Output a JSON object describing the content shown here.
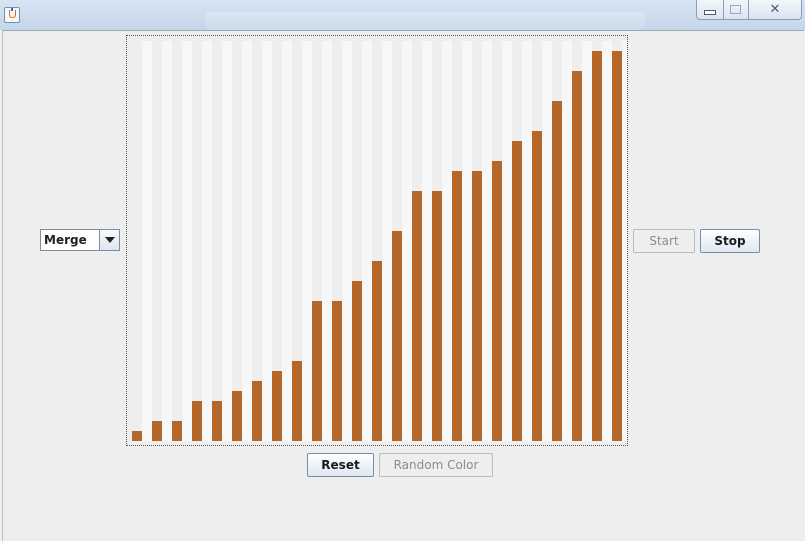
{
  "window": {
    "app_icon": "java-cup-icon",
    "controls": {
      "minimize": "minimize-icon",
      "maximize": "maximize-icon",
      "close_glyph": "✕"
    }
  },
  "toolbar": {
    "algorithm_select": {
      "value": "Merge",
      "icon": "chevron-down-icon"
    }
  },
  "controls": {
    "start_label": "Start",
    "start_enabled": false,
    "stop_label": "Stop",
    "stop_enabled": true,
    "reset_label": "Reset",
    "reset_enabled": true,
    "random_color_label": "Random Color",
    "random_color_enabled": false
  },
  "colors": {
    "bar": "#b5672a",
    "stripe_light": "#f7f7f7",
    "stripe_dark": "#eeeeee"
  },
  "chart_data": {
    "type": "bar",
    "title": "",
    "xlabel": "",
    "ylabel": "",
    "ylim": [
      0,
      40
    ],
    "values": [
      1,
      2,
      2,
      4,
      4,
      5,
      6,
      7,
      8,
      14,
      14,
      16,
      18,
      21,
      25,
      25,
      27,
      27,
      28,
      30,
      31,
      34,
      37,
      39,
      39
    ]
  }
}
